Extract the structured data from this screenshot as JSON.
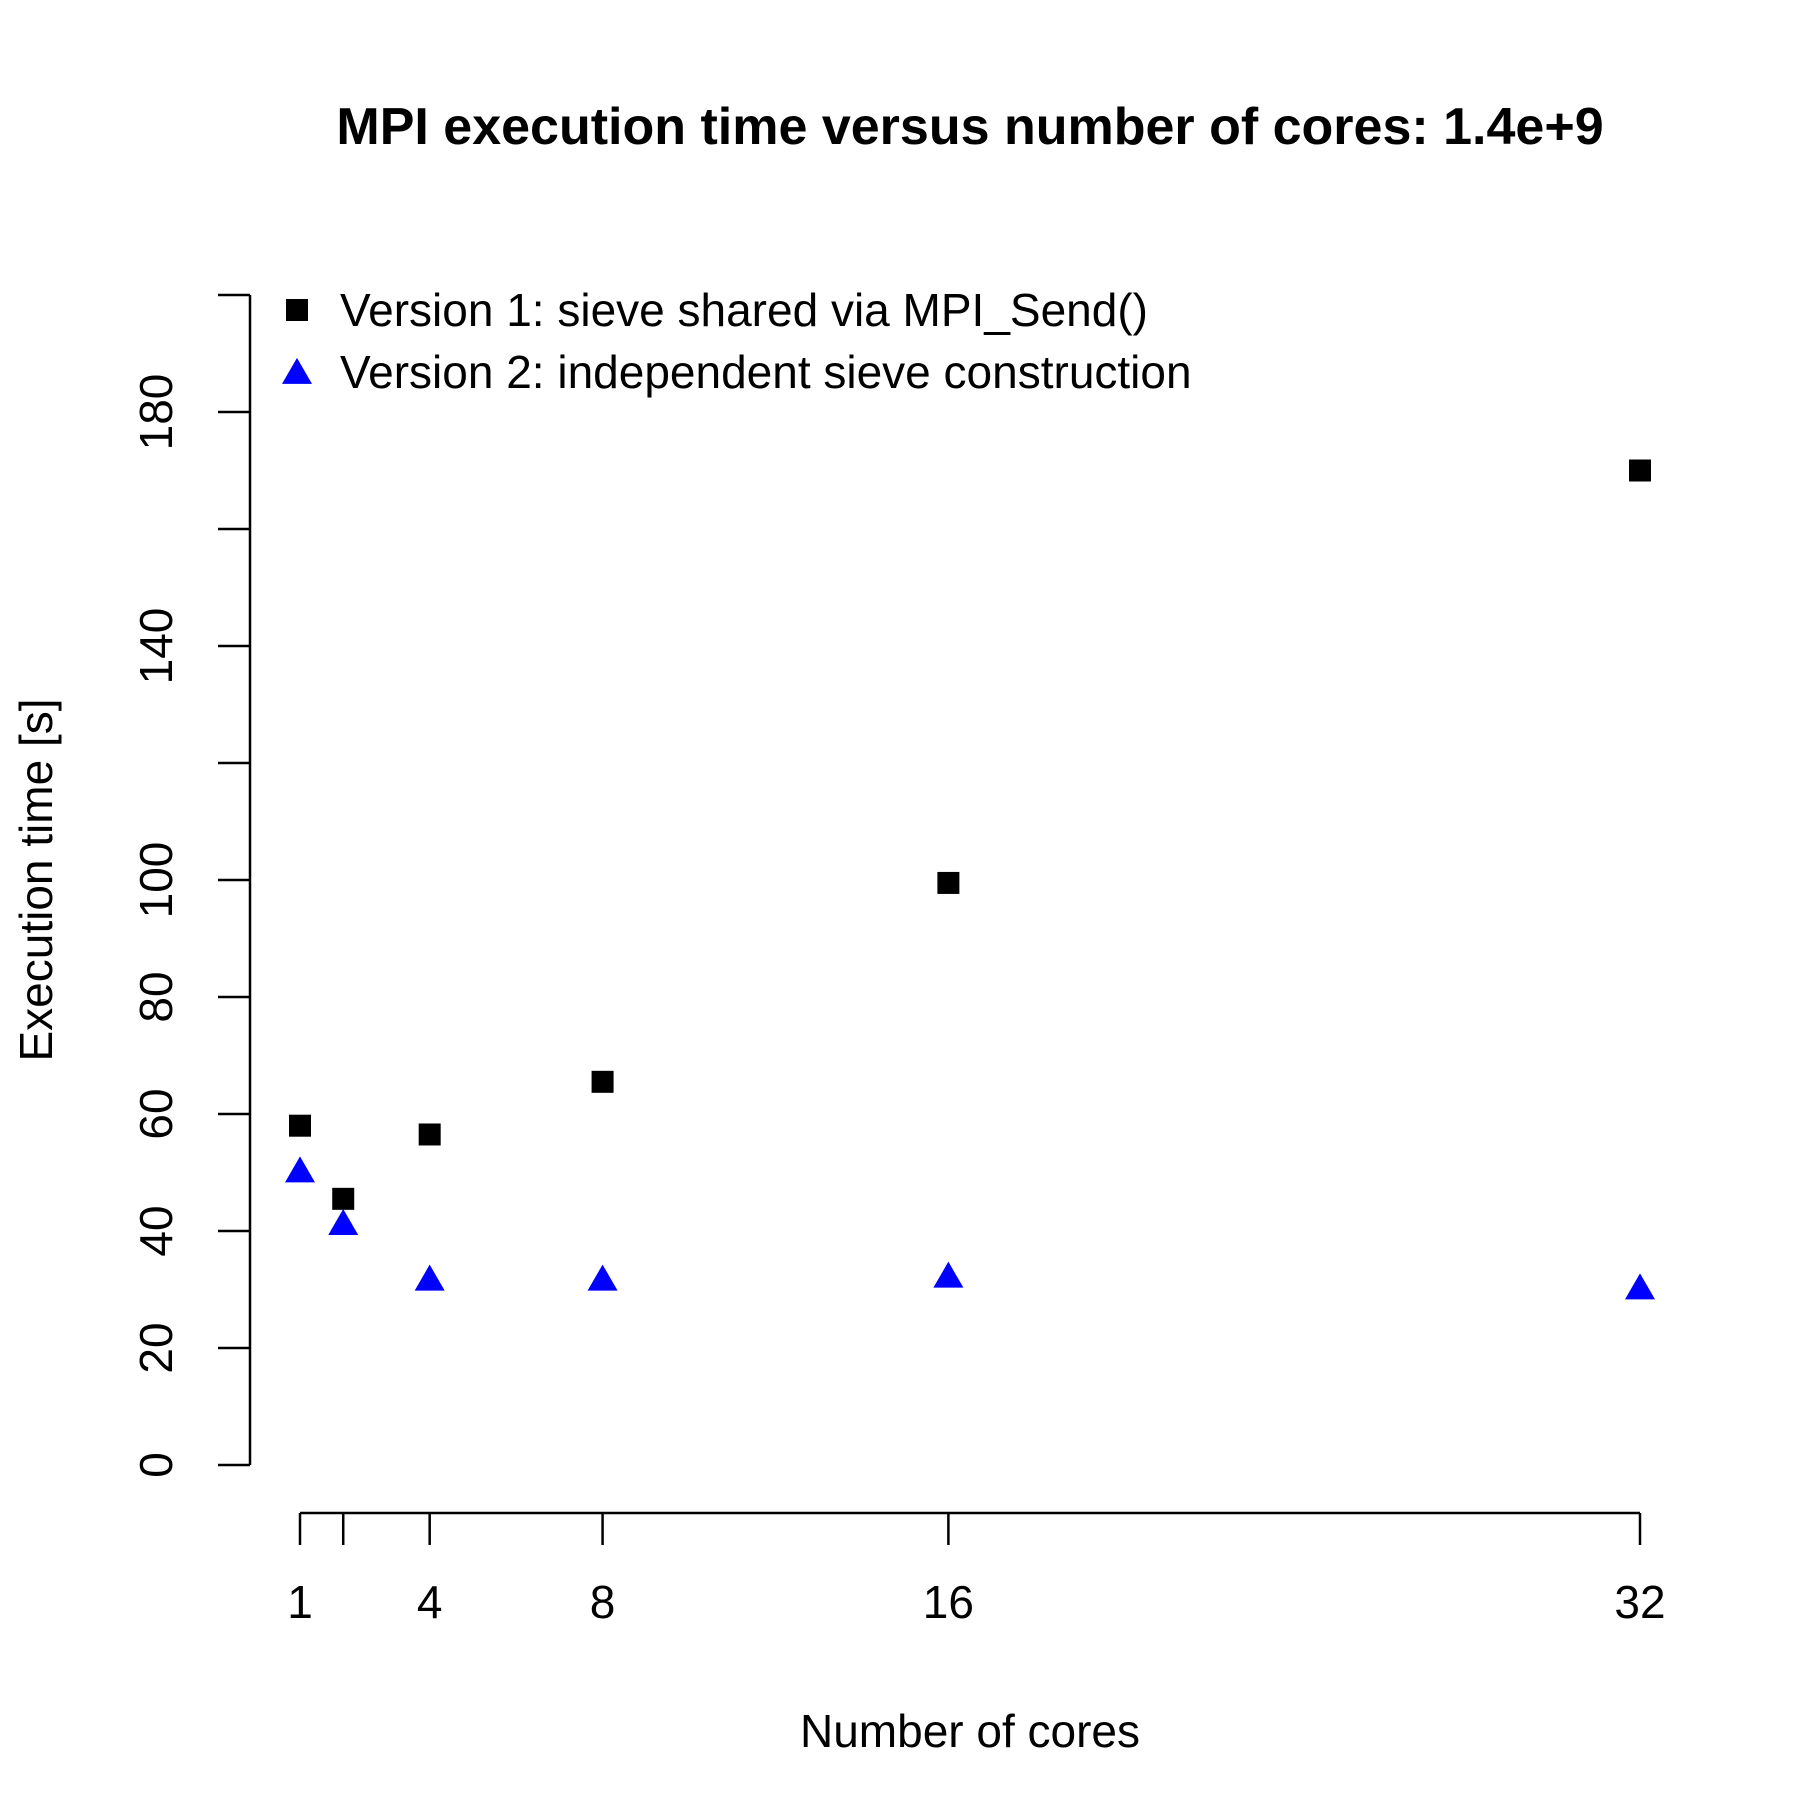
{
  "chart_data": {
    "type": "scatter",
    "title": "MPI execution time versus number of cores: 1.4e+9",
    "xlabel": "Number of cores",
    "ylabel": "Execution time [s]",
    "xlim": [
      1,
      32
    ],
    "ylim": [
      0,
      200
    ],
    "x_ticks": [
      1,
      2,
      4,
      8,
      16,
      32
    ],
    "x_tick_labels": [
      "1",
      "",
      "4",
      "8",
      "16",
      "32"
    ],
    "y_ticks": [
      0,
      20,
      40,
      60,
      80,
      100,
      120,
      140,
      160,
      180,
      200
    ],
    "y_tick_labels": [
      "0",
      "20",
      "40",
      "60",
      "80",
      "100",
      "",
      "140",
      "",
      "180",
      ""
    ],
    "grid": false,
    "legend_position": "top-left",
    "series": [
      {
        "name": "Version 1: sieve shared via MPI_Send()",
        "marker": "square",
        "color": "#000000",
        "x": [
          1,
          2,
          4,
          8,
          16,
          32
        ],
        "y": [
          58,
          45.5,
          56.5,
          65.5,
          99.5,
          170
        ]
      },
      {
        "name": "Version 2: independent sieve construction",
        "marker": "triangle",
        "color": "#0000ff",
        "x": [
          1,
          2,
          4,
          8,
          16,
          32
        ],
        "y": [
          50,
          41,
          31.5,
          31.5,
          32,
          30
        ]
      }
    ]
  }
}
